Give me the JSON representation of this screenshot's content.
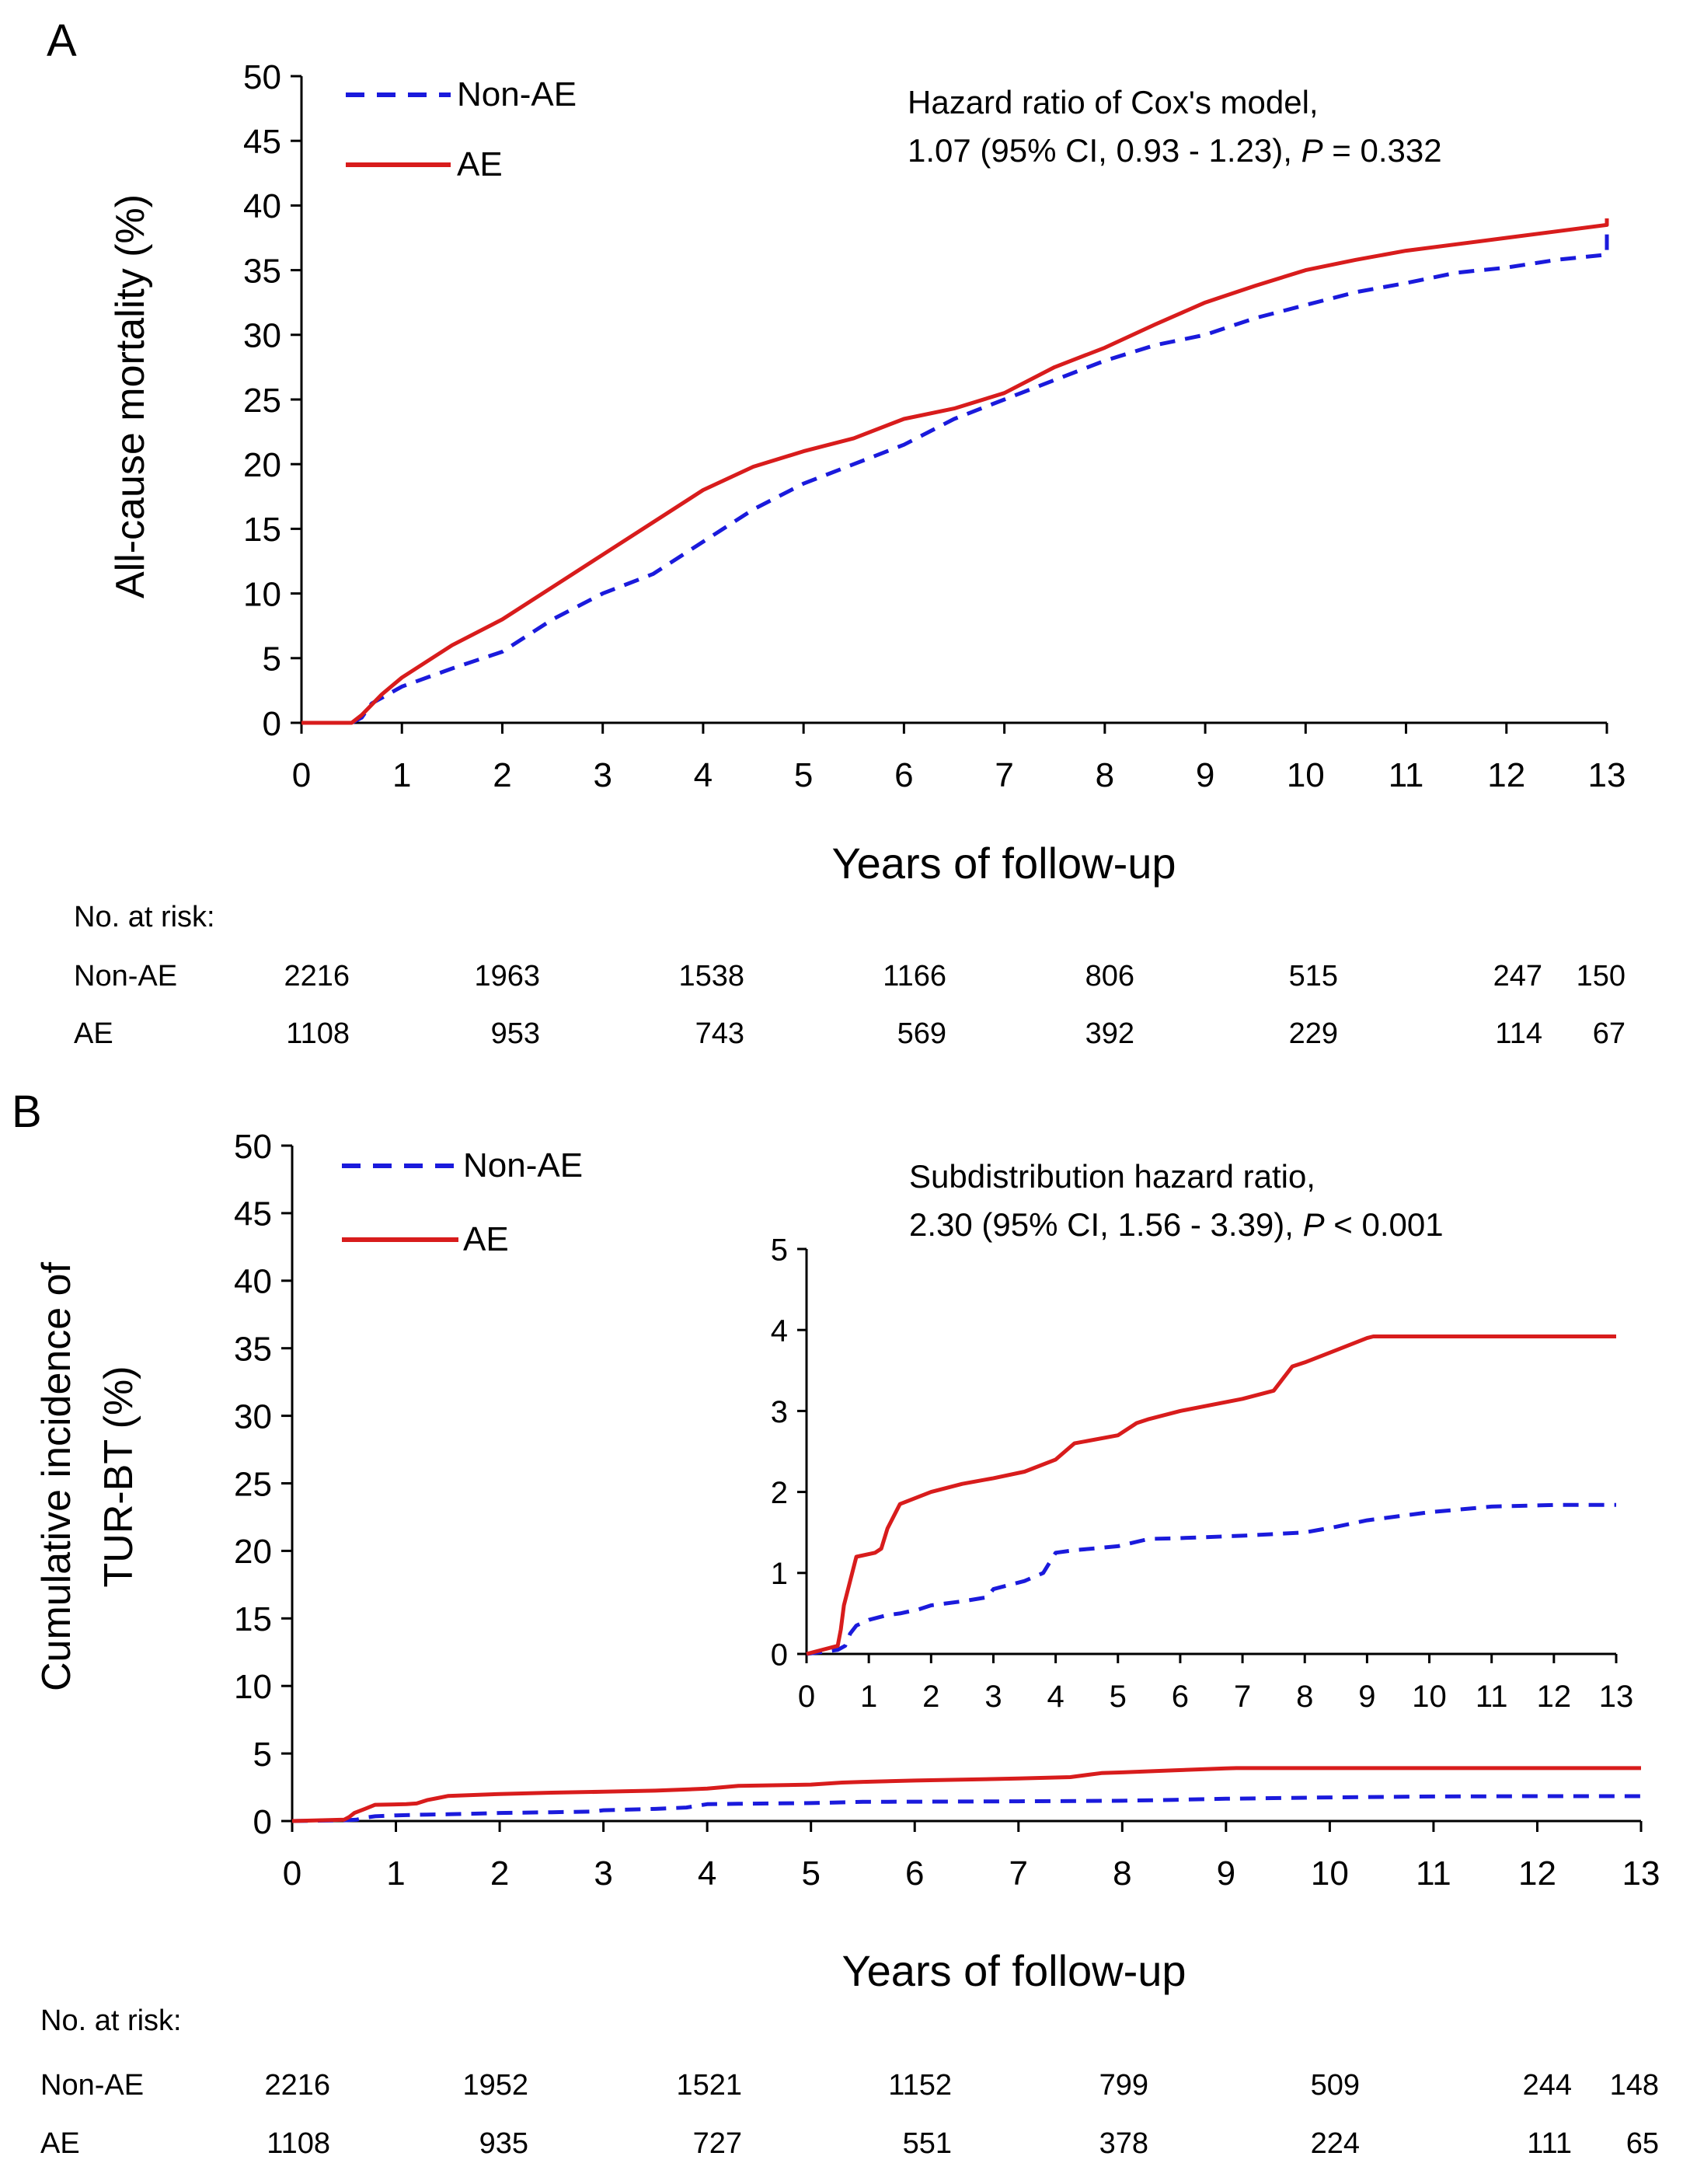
{
  "chart_data": [
    {
      "panel_label": "A",
      "type": "line",
      "ylabel": "All-cause mortality (%)",
      "xlabel": "Years of follow-up",
      "xlim": [
        0,
        13
      ],
      "ylim": [
        0,
        50
      ],
      "xticks": [
        "0",
        "1",
        "2",
        "3",
        "4",
        "5",
        "6",
        "7",
        "8",
        "9",
        "10",
        "11",
        "12",
        "13"
      ],
      "yticks": [
        "0",
        "5",
        "10",
        "15",
        "20",
        "25",
        "30",
        "35",
        "40",
        "45",
        "50"
      ],
      "legend": {
        "position": "top-left",
        "entries": [
          "Non-AE",
          "AE"
        ]
      },
      "annotation": {
        "line1": "Hazard ratio of Cox's model,",
        "line2_prefix": "1.07 (95% CI, 0.93 - 1.23), ",
        "p_letter": "P",
        "line2_suffix": " = 0.332"
      },
      "series": [
        {
          "name": "Non-AE",
          "color": "#1a1adc",
          "style": "dashed",
          "x": [
            0,
            0.5,
            0.6,
            0.7,
            1,
            1.5,
            2,
            2.5,
            3,
            3.5,
            4,
            4.5,
            5,
            5.5,
            6,
            6.5,
            7,
            7.5,
            8,
            8.5,
            9,
            9.5,
            10,
            10.5,
            11,
            11.5,
            12,
            12.5,
            13,
            13
          ],
          "y": [
            0,
            0,
            0.4,
            1.5,
            2.8,
            4.2,
            5.5,
            8,
            10,
            11.5,
            14,
            16.5,
            18.5,
            20,
            21.5,
            23.5,
            25,
            26.5,
            28,
            29.2,
            30,
            31.3,
            32.3,
            33.3,
            34,
            34.8,
            35.2,
            35.8,
            36.2,
            38
          ]
        },
        {
          "name": "AE",
          "color": "#d81c1c",
          "style": "solid",
          "x": [
            0,
            0.5,
            0.6,
            0.8,
            1,
            1.5,
            2,
            2.5,
            3,
            3.5,
            4,
            4.5,
            5,
            5.5,
            6,
            6.5,
            7,
            7.5,
            8,
            8.5,
            9,
            9.5,
            10,
            10.5,
            11,
            11.5,
            12,
            12.5,
            13,
            13
          ],
          "y": [
            0,
            0,
            0.6,
            2.2,
            3.5,
            6,
            8,
            10.5,
            13,
            15.5,
            18,
            19.8,
            21,
            22,
            23.5,
            24.3,
            25.5,
            27.5,
            29,
            30.8,
            32.5,
            33.8,
            35,
            35.8,
            36.5,
            37,
            37.5,
            38,
            38.5,
            39
          ]
        }
      ],
      "risk_table": {
        "header": "No. at risk:",
        "time_labels": [
          "0",
          "2",
          "4",
          "6",
          "8",
          "10",
          "12",
          "13"
        ],
        "rows": [
          {
            "label": "Non-AE",
            "values": [
              "2216",
              "1963",
              "1538",
              "1166",
              "806",
              "515",
              "247",
              "150"
            ]
          },
          {
            "label": "AE",
            "values": [
              "1108",
              "953",
              "743",
              "569",
              "392",
              "229",
              "114",
              "67"
            ]
          }
        ]
      }
    },
    {
      "panel_label": "B",
      "type": "line",
      "ylabel_line1": "Cumulative incidence of",
      "ylabel_line2": "TUR-BT (%)",
      "xlabel": "Years of follow-up",
      "xlim": [
        0,
        13
      ],
      "ylim": [
        0,
        50
      ],
      "xticks": [
        "0",
        "1",
        "2",
        "3",
        "4",
        "5",
        "6",
        "7",
        "8",
        "9",
        "10",
        "11",
        "12",
        "13"
      ],
      "yticks": [
        "0",
        "5",
        "10",
        "15",
        "20",
        "25",
        "30",
        "35",
        "40",
        "45",
        "50"
      ],
      "legend": {
        "position": "top-left",
        "entries": [
          "Non-AE",
          "AE"
        ]
      },
      "annotation": {
        "line1": "Subdistribution hazard ratio,",
        "line2_prefix": "2.30 (95% CI, 1.56 - 3.39), ",
        "p_letter": "P",
        "line2_suffix": " < 0.001"
      },
      "series": [
        {
          "name": "Non-AE",
          "color": "#1a1adc",
          "style": "dashed",
          "x": [
            0,
            0.5,
            0.62,
            0.7,
            0.8,
            1,
            1.3,
            1.5,
            1.8,
            2,
            2.5,
            2.9,
            3,
            3.5,
            3.8,
            4,
            4.3,
            5,
            5.5,
            6,
            7,
            8,
            8.5,
            9,
            10,
            11,
            12,
            13
          ],
          "y": [
            0,
            0.05,
            0.1,
            0.25,
            0.35,
            0.42,
            0.48,
            0.5,
            0.55,
            0.6,
            0.65,
            0.7,
            0.8,
            0.9,
            1.0,
            1.25,
            1.28,
            1.33,
            1.42,
            1.43,
            1.46,
            1.5,
            1.57,
            1.65,
            1.75,
            1.82,
            1.84,
            1.84
          ]
        },
        {
          "name": "AE",
          "color": "#d81c1c",
          "style": "solid",
          "x": [
            0,
            0.5,
            0.55,
            0.6,
            0.7,
            0.8,
            1.1,
            1.2,
            1.3,
            1.4,
            1.5,
            2,
            2.5,
            3,
            3.5,
            4,
            4.3,
            5,
            5.3,
            5.5,
            6,
            7,
            7.5,
            7.7,
            7.8,
            8,
            8.5,
            9,
            9.1,
            10,
            11,
            12,
            13
          ],
          "y": [
            0,
            0.1,
            0.3,
            0.6,
            0.9,
            1.2,
            1.25,
            1.3,
            1.55,
            1.7,
            1.85,
            2.0,
            2.1,
            2.17,
            2.25,
            2.4,
            2.6,
            2.7,
            2.85,
            2.9,
            3.0,
            3.15,
            3.25,
            3.45,
            3.55,
            3.6,
            3.75,
            3.9,
            3.92,
            3.92,
            3.92,
            3.92,
            3.92
          ]
        }
      ],
      "inset": {
        "xlim": [
          0,
          13
        ],
        "ylim": [
          0,
          5
        ],
        "xticks": [
          "0",
          "1",
          "2",
          "3",
          "4",
          "5",
          "6",
          "7",
          "8",
          "9",
          "10",
          "11",
          "12",
          "13"
        ],
        "yticks": [
          "0",
          "1",
          "2",
          "3",
          "4",
          "5"
        ]
      },
      "risk_table": {
        "header": "No. at risk:",
        "time_labels": [
          "0",
          "2",
          "4",
          "6",
          "8",
          "10",
          "12",
          "13"
        ],
        "rows": [
          {
            "label": "Non-AE",
            "values": [
              "2216",
              "1952",
              "1521",
              "1152",
              "799",
              "509",
              "244",
              "148"
            ]
          },
          {
            "label": "AE",
            "values": [
              "1108",
              "935",
              "727",
              "551",
              "378",
              "224",
              "111",
              "65"
            ]
          }
        ]
      }
    }
  ]
}
